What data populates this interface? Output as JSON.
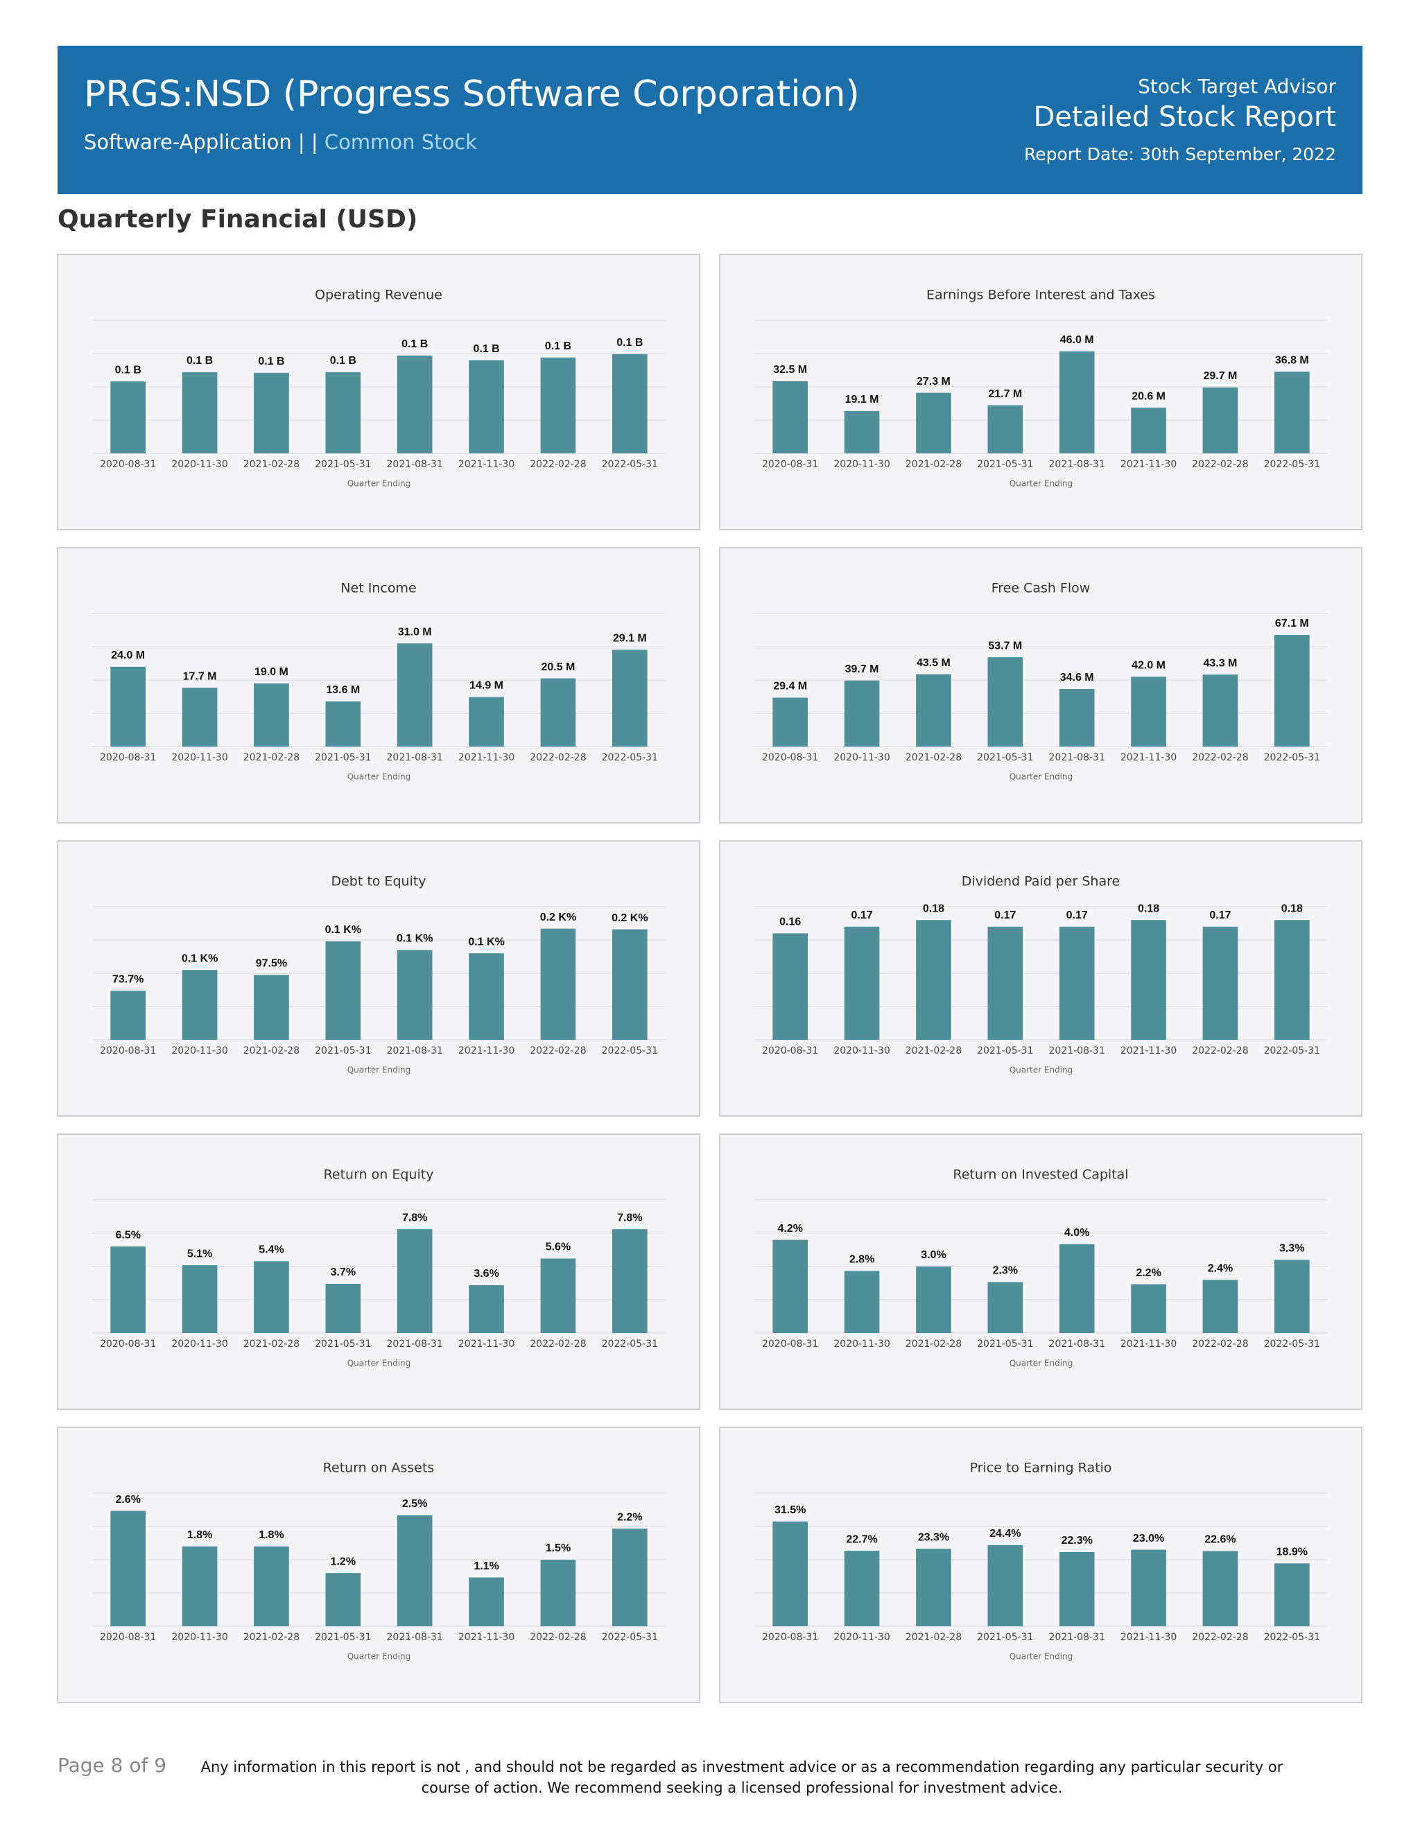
{
  "header": {
    "title": "PRGS:NSD (Progress Software Corporation)",
    "sector": "Software-Application",
    "separator": "| |",
    "stock_type": "Common Stock",
    "provider": "Stock Target Advisor",
    "report_name": "Detailed Stock Report",
    "report_date": "Report Date: 30th September, 2022"
  },
  "section_title": "Quarterly Financial (USD)",
  "chart_data": [
    {
      "type": "bar",
      "title": "Operating Revenue",
      "x_label": "Quarter Ending",
      "categories": [
        "2020-08-31",
        "2020-11-30",
        "2021-02-28",
        "2021-05-31",
        "2021-08-31",
        "2021-11-30",
        "2022-02-28",
        "2022-05-31"
      ],
      "values": [
        0.108,
        0.122,
        0.121,
        0.122,
        0.147,
        0.14,
        0.144,
        0.149
      ],
      "value_labels": [
        "0.1 B",
        "0.1 B",
        "0.1 B",
        "0.1 B",
        "0.1 B",
        "0.1 B",
        "0.1 B",
        "0.1 B"
      ],
      "color": "#4e8f9a",
      "ylim": [
        0,
        0.2
      ],
      "yticks": [
        0,
        0.05,
        0.1,
        0.15,
        0.2
      ],
      "grid": true
    },
    {
      "type": "bar",
      "title": "Earnings Before Interest and Taxes",
      "x_label": "Quarter Ending",
      "categories": [
        "2020-08-31",
        "2020-11-30",
        "2021-02-28",
        "2021-05-31",
        "2021-08-31",
        "2021-11-30",
        "2022-02-28",
        "2022-05-31"
      ],
      "values": [
        32.5,
        19.1,
        27.3,
        21.7,
        46.0,
        20.6,
        29.7,
        36.8
      ],
      "value_labels": [
        "32.5 M",
        "19.1 M",
        "27.3 M",
        "21.7 M",
        "46.0 M",
        "20.6 M",
        "29.7 M",
        "36.8 M"
      ],
      "color": "#4e8f9a",
      "ylim": [
        0,
        60
      ],
      "yticks": [
        0,
        15,
        30,
        45,
        60
      ],
      "grid": true
    },
    {
      "type": "bar",
      "title": "Net Income",
      "x_label": "Quarter Ending",
      "categories": [
        "2020-08-31",
        "2020-11-30",
        "2021-02-28",
        "2021-05-31",
        "2021-08-31",
        "2021-11-30",
        "2022-02-28",
        "2022-05-31"
      ],
      "values": [
        24.0,
        17.7,
        19.0,
        13.6,
        31.0,
        14.9,
        20.5,
        29.1
      ],
      "value_labels": [
        "24.0 M",
        "17.7 M",
        "19.0 M",
        "13.6 M",
        "31.0 M",
        "14.9 M",
        "20.5 M",
        "29.1 M"
      ],
      "color": "#4e8f9a",
      "ylim": [
        0,
        40
      ],
      "yticks": [
        0,
        10,
        20,
        30,
        40
      ],
      "grid": true
    },
    {
      "type": "bar",
      "title": "Free Cash Flow",
      "x_label": "Quarter Ending",
      "categories": [
        "2020-08-31",
        "2020-11-30",
        "2021-02-28",
        "2021-05-31",
        "2021-08-31",
        "2021-11-30",
        "2022-02-28",
        "2022-05-31"
      ],
      "values": [
        29.4,
        39.7,
        43.5,
        53.7,
        34.6,
        42.0,
        43.3,
        67.1
      ],
      "value_labels": [
        "29.4 M",
        "39.7 M",
        "43.5 M",
        "53.7 M",
        "34.6 M",
        "42.0 M",
        "43.3 M",
        "67.1 M"
      ],
      "color": "#4e8f9a",
      "ylim": [
        0,
        80
      ],
      "yticks": [
        0,
        20,
        40,
        60,
        80
      ],
      "grid": true
    },
    {
      "type": "bar",
      "title": "Debt to Equity",
      "x_label": "Quarter Ending",
      "categories": [
        "2020-08-31",
        "2020-11-30",
        "2021-02-28",
        "2021-05-31",
        "2021-08-31",
        "2021-11-30",
        "2022-02-28",
        "2022-05-31"
      ],
      "values": [
        73.7,
        105,
        97.5,
        148,
        135,
        130,
        167,
        166
      ],
      "value_labels": [
        "73.7%",
        "0.1 K%",
        "97.5%",
        "0.1 K%",
        "0.1 K%",
        "0.1 K%",
        "0.2 K%",
        "0.2 K%"
      ],
      "color": "#4e8f9a",
      "ylim": [
        0,
        200
      ],
      "yticks": [
        0,
        50,
        100,
        150,
        200
      ],
      "grid": true
    },
    {
      "type": "bar",
      "title": "Dividend Paid per Share",
      "x_label": "Quarter Ending",
      "categories": [
        "2020-08-31",
        "2020-11-30",
        "2021-02-28",
        "2021-05-31",
        "2021-08-31",
        "2021-11-30",
        "2022-02-28",
        "2022-05-31"
      ],
      "values": [
        0.16,
        0.17,
        0.18,
        0.17,
        0.17,
        0.18,
        0.17,
        0.18
      ],
      "color": "#4e8f9a",
      "ylim": [
        0,
        0.2
      ],
      "yticks": [
        0,
        0.05,
        0.1,
        0.15,
        0.2
      ],
      "grid": true
    },
    {
      "type": "bar",
      "title": "Return on Equity",
      "x_label": "Quarter Ending",
      "categories": [
        "2020-08-31",
        "2020-11-30",
        "2021-02-28",
        "2021-05-31",
        "2021-08-31",
        "2021-11-30",
        "2022-02-28",
        "2022-05-31"
      ],
      "values": [
        6.5,
        5.1,
        5.4,
        3.7,
        7.8,
        3.6,
        5.6,
        7.8
      ],
      "value_labels": [
        "6.5%",
        "5.1%",
        "5.4%",
        "3.7%",
        "7.8%",
        "3.6%",
        "5.6%",
        "7.8%"
      ],
      "color": "#4e8f9a",
      "ylim": [
        0,
        10
      ],
      "yticks": [
        0,
        2.5,
        5,
        7.5,
        10
      ],
      "grid": true
    },
    {
      "type": "bar",
      "title": "Return on Invested Capital",
      "x_label": "Quarter Ending",
      "categories": [
        "2020-08-31",
        "2020-11-30",
        "2021-02-28",
        "2021-05-31",
        "2021-08-31",
        "2021-11-30",
        "2022-02-28",
        "2022-05-31"
      ],
      "values": [
        4.2,
        2.8,
        3.0,
        2.3,
        4.0,
        2.2,
        2.4,
        3.3
      ],
      "value_labels": [
        "4.2%",
        "2.8%",
        "3.0%",
        "2.3%",
        "4.0%",
        "2.2%",
        "2.4%",
        "3.3%"
      ],
      "color": "#4e8f9a",
      "ylim": [
        0,
        6
      ],
      "yticks": [
        0,
        1.5,
        3,
        4.5,
        6
      ],
      "grid": true
    },
    {
      "type": "bar",
      "title": "Return on Assets",
      "x_label": "Quarter Ending",
      "categories": [
        "2020-08-31",
        "2020-11-30",
        "2021-02-28",
        "2021-05-31",
        "2021-08-31",
        "2021-11-30",
        "2022-02-28",
        "2022-05-31"
      ],
      "values": [
        2.6,
        1.8,
        1.8,
        1.2,
        2.5,
        1.1,
        1.5,
        2.2
      ],
      "value_labels": [
        "2.6%",
        "1.8%",
        "1.8%",
        "1.2%",
        "2.5%",
        "1.1%",
        "1.5%",
        "2.2%"
      ],
      "color": "#4e8f9a",
      "ylim": [
        0,
        3
      ],
      "yticks": [
        0,
        0.75,
        1.5,
        2.25,
        3
      ],
      "grid": true
    },
    {
      "type": "bar",
      "title": "Price to Earning Ratio",
      "x_label": "Quarter Ending",
      "categories": [
        "2020-08-31",
        "2020-11-30",
        "2021-02-28",
        "2021-05-31",
        "2021-08-31",
        "2021-11-30",
        "2022-02-28",
        "2022-05-31"
      ],
      "values": [
        31.5,
        22.7,
        23.3,
        24.4,
        22.3,
        23.0,
        22.6,
        18.9
      ],
      "value_labels": [
        "31.5%",
        "22.7%",
        "23.3%",
        "24.4%",
        "22.3%",
        "23.0%",
        "22.6%",
        "18.9%"
      ],
      "color": "#4e8f9a",
      "ylim": [
        0,
        40
      ],
      "yticks": [
        0,
        10,
        20,
        30,
        40
      ],
      "grid": true
    }
  ],
  "footer": {
    "page": "Page 8 of 9",
    "disclaimer": "Any information in this report is not , and should not be regarded as investment advice or as a recommendation regarding any particular security or course of action. We recommend seeking a licensed professional for investment advice."
  }
}
